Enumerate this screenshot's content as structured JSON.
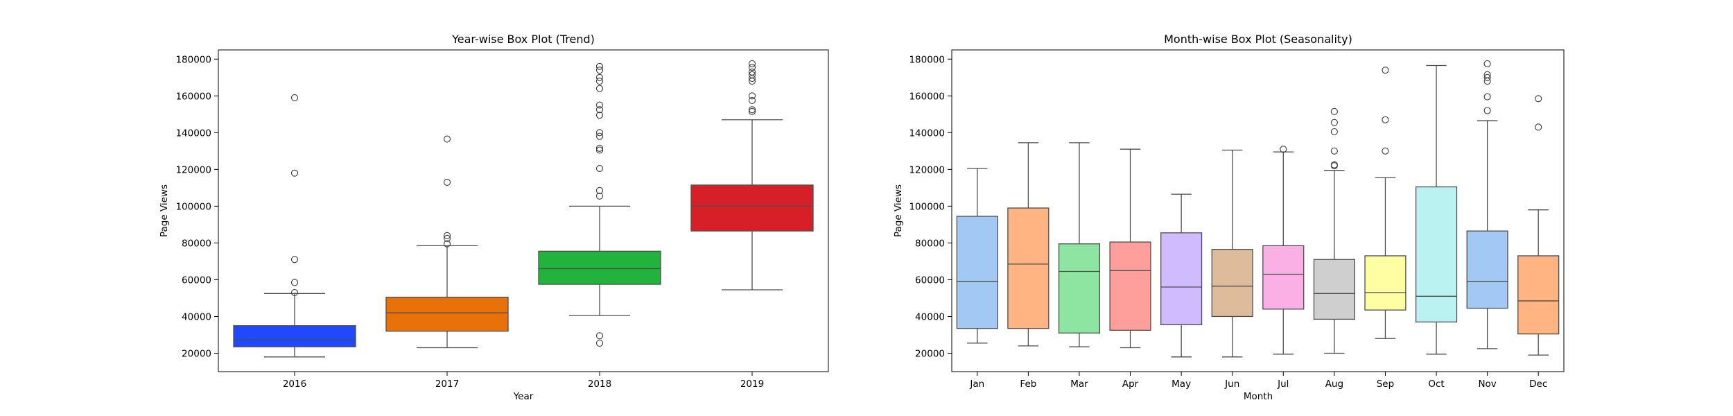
{
  "chart_data": [
    {
      "type": "box",
      "title": "Year-wise Box Plot (Trend)",
      "xlabel": "Year",
      "ylabel": "Page Views",
      "ylim": [
        10000,
        185000
      ],
      "yticks": [
        20000,
        40000,
        60000,
        80000,
        100000,
        120000,
        140000,
        160000,
        180000
      ],
      "ytick_labels": [
        "20000",
        "40000",
        "60000",
        "80000",
        "100000",
        "120000",
        "140000",
        "160000",
        "180000"
      ],
      "grid": false,
      "categories": [
        "2016",
        "2017",
        "2018",
        "2019"
      ],
      "boxes": [
        {
          "category": "2016",
          "color": "#1f48ff",
          "whisker_low": 18000,
          "q1": 23500,
          "median": 27500,
          "q3": 35000,
          "whisker_high": 52500,
          "outliers": [
            53000,
            58500,
            71000,
            118000,
            159000
          ]
        },
        {
          "category": "2017",
          "color": "#e8710a",
          "whisker_low": 23000,
          "q1": 32000,
          "median": 42000,
          "q3": 50500,
          "whisker_high": 78500,
          "outliers": [
            79500,
            82500,
            84000,
            113000,
            136500
          ]
        },
        {
          "category": "2018",
          "color": "#22b33d",
          "whisker_low": 40500,
          "q1": 57500,
          "median": 66000,
          "q3": 75500,
          "whisker_high": 100000,
          "outliers": [
            25500,
            29500,
            105500,
            108500,
            120500,
            130500,
            131500,
            138000,
            140000,
            149500,
            152500,
            155000,
            164000,
            168000,
            170000,
            174000,
            176000
          ]
        },
        {
          "category": "2019",
          "color": "#d61f26",
          "whisker_low": 54500,
          "q1": 86500,
          "median": 100000,
          "q3": 111500,
          "whisker_high": 147000,
          "outliers": [
            151500,
            152500,
            157500,
            160000,
            168000,
            169500,
            171500,
            173000,
            175500,
            177500
          ]
        }
      ]
    },
    {
      "type": "box",
      "title": "Month-wise Box Plot (Seasonality)",
      "xlabel": "Month",
      "ylabel": "Page Views",
      "ylim": [
        10000,
        185000
      ],
      "yticks": [
        20000,
        40000,
        60000,
        80000,
        100000,
        120000,
        140000,
        160000,
        180000
      ],
      "ytick_labels": [
        "20000",
        "40000",
        "60000",
        "80000",
        "100000",
        "120000",
        "140000",
        "160000",
        "180000"
      ],
      "grid": false,
      "categories": [
        "Jan",
        "Feb",
        "Mar",
        "Apr",
        "May",
        "Jun",
        "Jul",
        "Aug",
        "Sep",
        "Oct",
        "Nov",
        "Dec"
      ],
      "boxes": [
        {
          "category": "Jan",
          "color": "#a1c9f4",
          "whisker_low": 25500,
          "q1": 33500,
          "median": 59000,
          "q3": 94500,
          "whisker_high": 120500,
          "outliers": []
        },
        {
          "category": "Feb",
          "color": "#ffb482",
          "whisker_low": 24000,
          "q1": 33500,
          "median": 68500,
          "q3": 99000,
          "whisker_high": 134500,
          "outliers": []
        },
        {
          "category": "Mar",
          "color": "#8de5a1",
          "whisker_low": 23500,
          "q1": 31000,
          "median": 64500,
          "q3": 79500,
          "whisker_high": 134500,
          "outliers": []
        },
        {
          "category": "Apr",
          "color": "#ff9f9b",
          "whisker_low": 23000,
          "q1": 32500,
          "median": 65000,
          "q3": 80500,
          "whisker_high": 131000,
          "outliers": []
        },
        {
          "category": "May",
          "color": "#d0bbff",
          "whisker_low": 18000,
          "q1": 35500,
          "median": 56000,
          "q3": 85500,
          "whisker_high": 106500,
          "outliers": []
        },
        {
          "category": "Jun",
          "color": "#debb9b",
          "whisker_low": 18000,
          "q1": 40000,
          "median": 56500,
          "q3": 76500,
          "whisker_high": 130500,
          "outliers": []
        },
        {
          "category": "Jul",
          "color": "#fab0e4",
          "whisker_low": 19500,
          "q1": 44000,
          "median": 63000,
          "q3": 78500,
          "whisker_high": 129500,
          "outliers": [
            131000
          ]
        },
        {
          "category": "Aug",
          "color": "#cfcfcf",
          "whisker_low": 20000,
          "q1": 38500,
          "median": 52500,
          "q3": 71000,
          "whisker_high": 119500,
          "outliers": [
            122000,
            122500,
            130000,
            140500,
            145500,
            151500
          ]
        },
        {
          "category": "Sep",
          "color": "#fffea3",
          "whisker_low": 28000,
          "q1": 43500,
          "median": 53000,
          "q3": 73000,
          "whisker_high": 115500,
          "outliers": [
            130000,
            147000,
            174000
          ]
        },
        {
          "category": "Oct",
          "color": "#b9f2f0",
          "whisker_low": 19500,
          "q1": 37000,
          "median": 51000,
          "q3": 110500,
          "whisker_high": 176500,
          "outliers": []
        },
        {
          "category": "Nov",
          "color": "#a1c9f4",
          "whisker_low": 22500,
          "q1": 44500,
          "median": 59000,
          "q3": 86500,
          "whisker_high": 146500,
          "outliers": [
            152000,
            159500,
            168000,
            170000,
            171500,
            177500
          ]
        },
        {
          "category": "Dec",
          "color": "#ffb482",
          "whisker_low": 19000,
          "q1": 30500,
          "median": 48500,
          "q3": 73000,
          "whisker_high": 98000,
          "outliers": [
            143000,
            158500
          ]
        }
      ]
    }
  ]
}
